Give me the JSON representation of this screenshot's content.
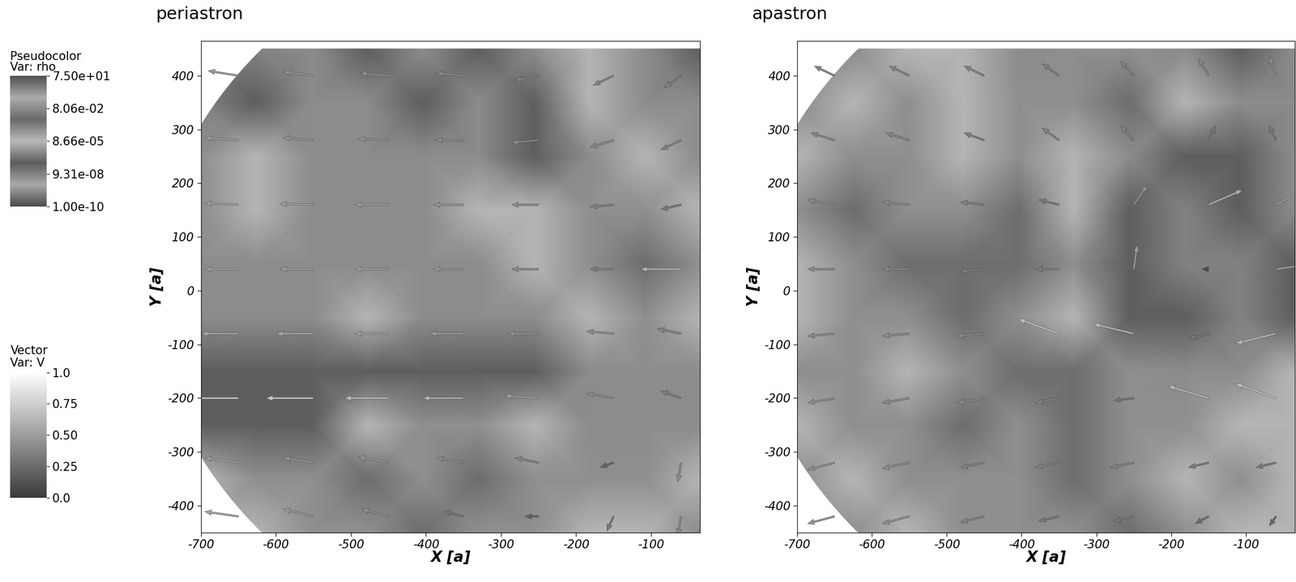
{
  "chart_data": [
    {
      "type": "heatmap",
      "title": "periastron",
      "xlabel": "X [a]",
      "ylabel": "Y [a]",
      "xlim": [
        -700,
        -35
      ],
      "ylim": [
        -450,
        465
      ],
      "xticks": [
        -700,
        -600,
        -500,
        -400,
        -300,
        -200,
        -100
      ],
      "yticks": [
        -400,
        -300,
        -200,
        -100,
        0,
        100,
        200,
        300,
        400
      ],
      "domain_radius": 765,
      "x": [
        -700,
        -626,
        -552,
        -478,
        -404,
        -330,
        -256,
        -182,
        -108,
        -35
      ],
      "y": [
        450,
        350,
        250,
        150,
        50,
        -50,
        -150,
        -250,
        -350,
        -450
      ],
      "rho": [
        [
          1e-06,
          1e-07,
          1e-05,
          1e-06,
          1e-05,
          1e-06,
          1e-05,
          0.0001,
          1e-05,
          1e-06
        ],
        [
          1e-07,
          1e-06,
          1e-05,
          1e-05,
          1e-06,
          1e-05,
          1e-06,
          0.0001,
          1e-05,
          1e-05
        ],
        [
          0.001,
          0.0001,
          1e-05,
          1e-05,
          1e-05,
          1e-05,
          1e-06,
          1e-05,
          0.0001,
          1e-05
        ],
        [
          0.001,
          0.0001,
          1e-05,
          1e-05,
          1e-05,
          0.0001,
          0.0001,
          0.001,
          0.001,
          0.0001
        ],
        [
          1e-05,
          1e-05,
          1e-05,
          1e-05,
          1e-05,
          1e-05,
          0.0001,
          0.001,
          0.01,
          0.001
        ],
        [
          1e-05,
          1e-05,
          1e-05,
          0.0001,
          1e-05,
          1e-05,
          1e-05,
          0.0001,
          0.001,
          0.0001
        ],
        [
          1e-06,
          1e-06,
          1e-06,
          1e-06,
          1e-06,
          1e-06,
          1e-06,
          1e-05,
          1e-05,
          1e-05
        ],
        [
          1e-06,
          1e-06,
          1e-06,
          0.0001,
          0.001,
          0.001,
          0.0001,
          1e-05,
          1e-05,
          1e-05
        ],
        [
          0.0001,
          0.001,
          0.001,
          0.01,
          0.001,
          0.01,
          0.001,
          0.001,
          0.001,
          0.0001
        ],
        [
          0.001,
          0.0001,
          0.001,
          0.001,
          0.01,
          0.001,
          0.001,
          0.0001,
          0.0001,
          1e-05
        ]
      ],
      "vectors": {
        "x": [
          -650,
          -550,
          -450,
          -350,
          -250,
          -150,
          -60
        ],
        "y": [
          400,
          280,
          160,
          40,
          -80,
          -200,
          -320,
          -420
        ],
        "u": [
          [
            -0.45,
            -0.45,
            -0.42,
            -0.4,
            -0.35,
            -0.3,
            -0.25
          ],
          [
            -0.5,
            -0.45,
            -0.45,
            -0.42,
            -0.4,
            -0.35,
            -0.3
          ],
          [
            -0.5,
            -0.5,
            -0.5,
            -0.45,
            -0.4,
            -0.35,
            -0.3
          ],
          [
            -0.5,
            -0.5,
            -0.5,
            -0.45,
            -0.4,
            -0.35,
            -0.6
          ],
          [
            -0.55,
            -0.55,
            -0.5,
            -0.5,
            -0.45,
            -0.4,
            -0.35
          ],
          [
            -0.7,
            -0.7,
            -0.65,
            -0.6,
            -0.5,
            -0.4,
            -0.3
          ],
          [
            -0.5,
            -0.45,
            -0.45,
            -0.4,
            -0.35,
            -0.2,
            -0.05
          ],
          [
            -0.5,
            -0.45,
            -0.4,
            -0.3,
            -0.2,
            -0.1,
            -0.05
          ]
        ],
        "v": [
          [
            0.1,
            0.08,
            0.05,
            0.05,
            -0.1,
            -0.2,
            -0.25
          ],
          [
            0.05,
            0.05,
            0.03,
            0.0,
            -0.05,
            -0.15,
            -0.2
          ],
          [
            0.03,
            0.02,
            0.0,
            0.0,
            0.0,
            -0.05,
            -0.1
          ],
          [
            0.0,
            0.0,
            0.0,
            0.0,
            0.0,
            0.0,
            0.0
          ],
          [
            0.0,
            0.0,
            0.0,
            0.0,
            0.0,
            0.05,
            0.1
          ],
          [
            0.0,
            0.0,
            0.0,
            0.0,
            0.05,
            0.1,
            0.15
          ],
          [
            0.1,
            0.1,
            0.12,
            0.1,
            0.1,
            -0.1,
            -0.4
          ],
          [
            0.1,
            0.15,
            0.15,
            0.1,
            0.0,
            -0.3,
            -0.4
          ]
        ]
      }
    },
    {
      "type": "heatmap",
      "title": "apastron",
      "xlabel": "X [a]",
      "ylabel": "Y [a]",
      "xlim": [
        -700,
        -35
      ],
      "ylim": [
        -450,
        465
      ],
      "xticks": [
        -700,
        -600,
        -500,
        -400,
        -300,
        -200,
        -100
      ],
      "yticks": [
        -400,
        -300,
        -200,
        -100,
        0,
        100,
        200,
        300,
        400
      ],
      "domain_radius": 765,
      "x": [
        -700,
        -626,
        -552,
        -478,
        -404,
        -330,
        -256,
        -182,
        -108,
        -35
      ],
      "y": [
        450,
        350,
        250,
        150,
        50,
        -50,
        -150,
        -250,
        -350,
        -450
      ],
      "rho": [
        [
          1e-05,
          1e-05,
          0.0001,
          0.0001,
          1e-05,
          0.001,
          0.001,
          1e-05,
          1e-06,
          1e-05
        ],
        [
          1e-05,
          0.0001,
          0.001,
          0.0001,
          0.001,
          0.001,
          0.01,
          0.0001,
          1e-05,
          1e-05
        ],
        [
          0.0001,
          0.001,
          0.001,
          0.0001,
          0.001,
          0.0001,
          1e-05,
          1e-06,
          1e-06,
          1e-05
        ],
        [
          0.001,
          0.01,
          0.001,
          0.001,
          0.01,
          0.0001,
          1e-06,
          1e-07,
          1e-06,
          1e-05
        ],
        [
          0.0001,
          0.001,
          0.01,
          0.01,
          0.01,
          0.001,
          1e-06,
          1e-07,
          1e-07,
          1e-06
        ],
        [
          0.0001,
          0.001,
          0.001,
          0.01,
          0.001,
          0.0001,
          1e-06,
          1e-06,
          1e-07,
          1e-06
        ],
        [
          0.001,
          0.001,
          0.0001,
          0.001,
          0.01,
          0.01,
          0.001,
          1e-05,
          1e-05,
          0.0001
        ],
        [
          0.0001,
          0.001,
          0.001,
          0.01,
          0.001,
          0.01,
          0.001,
          0.001,
          0.0001,
          0.0001
        ],
        [
          0.001,
          0.0001,
          0.001,
          0.001,
          0.001,
          0.01,
          0.001,
          0.0001,
          0.001,
          0.0001
        ],
        [
          0.001,
          0.001,
          0.0001,
          0.001,
          0.001,
          0.001,
          0.01,
          0.001,
          0.0001,
          0.0001
        ]
      ],
      "vectors": {
        "x": [
          -650,
          -550,
          -450,
          -350,
          -250,
          -150,
          -60
        ],
        "y": [
          400,
          280,
          160,
          40,
          -80,
          -200,
          -320,
          -420
        ],
        "u": [
          [
            -0.3,
            -0.3,
            -0.3,
            -0.25,
            -0.2,
            -0.15,
            -0.1
          ],
          [
            -0.35,
            -0.35,
            -0.3,
            -0.25,
            -0.2,
            0.1,
            -0.1
          ],
          [
            -0.4,
            -0.4,
            -0.35,
            -0.3,
            0.2,
            0.5,
            0.4
          ],
          [
            -0.4,
            -0.4,
            -0.35,
            -0.35,
            0.05,
            -0.1,
            0.5
          ],
          [
            -0.4,
            -0.4,
            -0.4,
            -0.6,
            -0.6,
            -0.3,
            -0.6
          ],
          [
            -0.4,
            -0.4,
            -0.4,
            -0.35,
            -0.3,
            -0.6,
            -0.6
          ],
          [
            -0.4,
            -0.4,
            -0.35,
            -0.35,
            -0.35,
            -0.3,
            -0.3
          ],
          [
            -0.4,
            -0.4,
            -0.35,
            -0.3,
            -0.3,
            -0.2,
            -0.1
          ]
        ],
        "v": [
          [
            0.2,
            0.2,
            0.2,
            0.25,
            0.3,
            0.35,
            0.4
          ],
          [
            0.15,
            0.15,
            0.15,
            0.25,
            0.3,
            0.3,
            0.3
          ],
          [
            0.1,
            0.05,
            0.05,
            0.1,
            0.4,
            0.3,
            0.3
          ],
          [
            0.0,
            0.0,
            -0.05,
            0.0,
            0.5,
            0.0,
            0.1
          ],
          [
            -0.05,
            -0.05,
            -0.05,
            0.3,
            0.2,
            -0.1,
            -0.2
          ],
          [
            -0.1,
            -0.1,
            -0.1,
            -0.1,
            -0.05,
            0.25,
            0.3
          ],
          [
            -0.15,
            -0.12,
            -0.1,
            -0.1,
            -0.1,
            -0.1,
            -0.1
          ],
          [
            -0.15,
            -0.15,
            -0.12,
            -0.1,
            -0.1,
            -0.15,
            -0.2
          ]
        ]
      }
    }
  ],
  "colorbars": {
    "rho": {
      "title": "Pseudocolor",
      "subtitle": "Var: rho",
      "log": true,
      "range": [
        1e-10,
        75
      ],
      "ticks": [
        {
          "value": 75,
          "label": "7.50e+01"
        },
        {
          "value": 0.0806,
          "label": "8.06e-02"
        },
        {
          "value": 8.66e-05,
          "label": "8.66e-05"
        },
        {
          "value": 9.31e-08,
          "label": "9.31e-08"
        },
        {
          "value": 1e-10,
          "label": "1.00e-10"
        }
      ]
    },
    "V": {
      "title": "Vector",
      "subtitle": "Var: V",
      "range": [
        0.0,
        1.0
      ],
      "ticks": [
        {
          "value": 1.0,
          "label": "1.0"
        },
        0.75,
        {
          "value": 0.5,
          "label": "0.50"
        },
        0.25,
        {
          "value": 0.0,
          "label": "0.0"
        }
      ]
    }
  }
}
